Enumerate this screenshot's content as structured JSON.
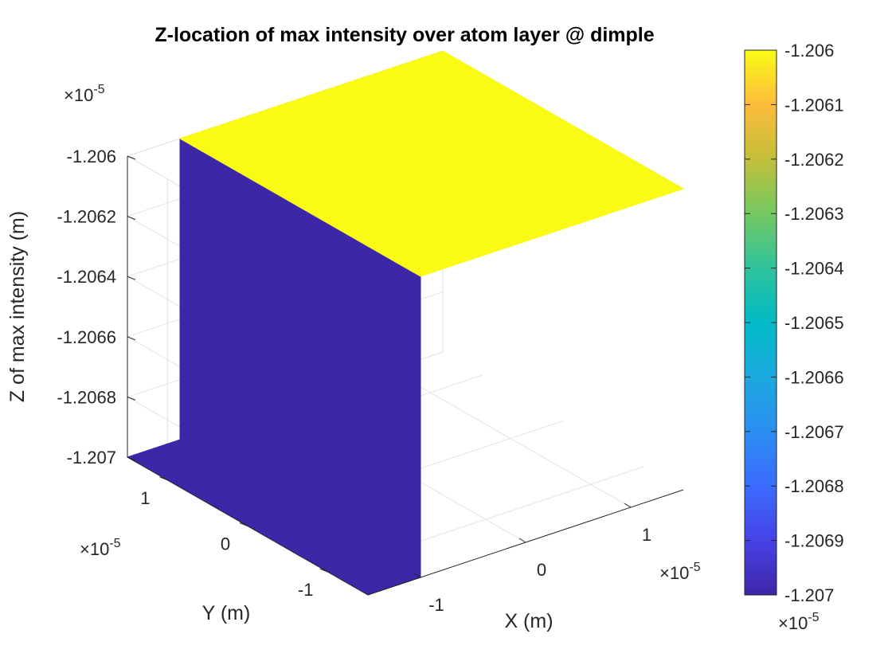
{
  "chart_data": {
    "type": "surface",
    "title": "Z-location of max intensity over atom layer @ dimple",
    "xlabel": "X (m)",
    "ylabel": "Y (m)",
    "zlabel": "Z of max intensity (m)",
    "x_exponent_label": "×10",
    "y_exponent_label": "×10",
    "z_exponent_label": "×10",
    "colorbar_exponent_label": "×10",
    "exponent": "-5",
    "x_ticks": [
      "-1",
      "0",
      "1"
    ],
    "y_ticks": [
      "-1",
      "0",
      "1"
    ],
    "z_ticks": [
      "-1.206",
      "-1.2062",
      "-1.2064",
      "-1.2066",
      "-1.2068",
      "-1.207"
    ],
    "colorbar_ticks": [
      "-1.206",
      "-1.2061",
      "-1.2062",
      "-1.2063",
      "-1.2064",
      "-1.2065",
      "-1.2066",
      "-1.2067",
      "-1.2068",
      "-1.2069",
      "-1.207"
    ],
    "xlim": [
      -1.5,
      1.5
    ],
    "ylim": [
      -1.5,
      1.5
    ],
    "zlim": [
      -1.207,
      -1.206
    ],
    "colormap": "parula",
    "color_low": "#3e26a8",
    "color_high": "#f9fb15",
    "surface": [
      {
        "region": "low plateau",
        "x_range": [
          -1.5,
          -1.0
        ],
        "y_range": [
          -1.5,
          1.5
        ],
        "z": -1.207
      },
      {
        "region": "high plateau",
        "x_range": [
          -1.0,
          1.5
        ],
        "y_range": [
          -1.5,
          1.5
        ],
        "z": -1.206
      }
    ],
    "step_x": -1.0,
    "grid": true
  }
}
